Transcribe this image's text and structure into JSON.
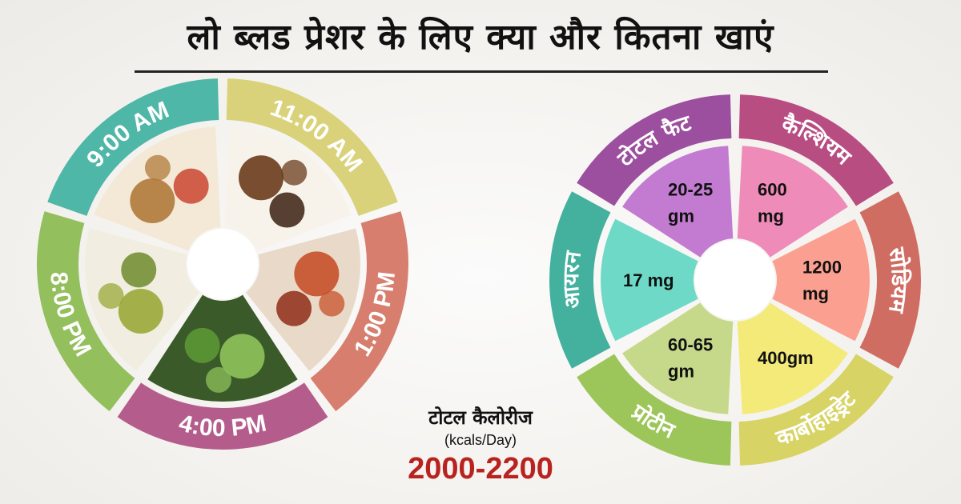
{
  "title": "लो ब्लड प्रेशर के लिए क्या और कितना खाएं",
  "meal_wheel": {
    "times": [
      {
        "label": "9:00 AM",
        "color": "#4fb7a7"
      },
      {
        "label": "11:00 AM",
        "color": "#d9d27a"
      },
      {
        "label": "1:00 PM",
        "color": "#d77e6f"
      },
      {
        "label": "4:00 PM",
        "color": "#b45d8c"
      },
      {
        "label": "8:00 PM",
        "color": "#93bf5c"
      }
    ],
    "foods": [
      "food-wraps",
      "coffee-cup",
      "chicken-curry",
      "guava",
      "green-dal"
    ]
  },
  "nutrient_wheel": {
    "segments": [
      {
        "name": "टोटल फैट",
        "value_lines": [
          "20-25",
          "gm"
        ],
        "ring_color": "#9b4f9e",
        "fill_color": "#c27bd1"
      },
      {
        "name": "कैल्शियम",
        "value_lines": [
          "600",
          "mg"
        ],
        "ring_color": "#b84d82",
        "fill_color": "#ee8bb8"
      },
      {
        "name": "सोडियम",
        "value_lines": [
          "1200",
          "mg"
        ],
        "ring_color": "#d06d63",
        "fill_color": "#fba090"
      },
      {
        "name": "कार्बोहाइड्रेट",
        "value_lines": [
          "400gm"
        ],
        "ring_color": "#d7d364",
        "fill_color": "#f3ea7a"
      },
      {
        "name": "प्रोटीन",
        "value_lines": [
          "60-65",
          "gm"
        ],
        "ring_color": "#9cc65a",
        "fill_color": "#c6d98a"
      },
      {
        "name": "आयरन",
        "value_lines": [
          "17 mg"
        ],
        "ring_color": "#44b09e",
        "fill_color": "#6fd9c7"
      }
    ]
  },
  "totals": {
    "label": "टोटल कैलोरीज",
    "unit": "(kcals/Day)",
    "value": "2000-2200"
  }
}
